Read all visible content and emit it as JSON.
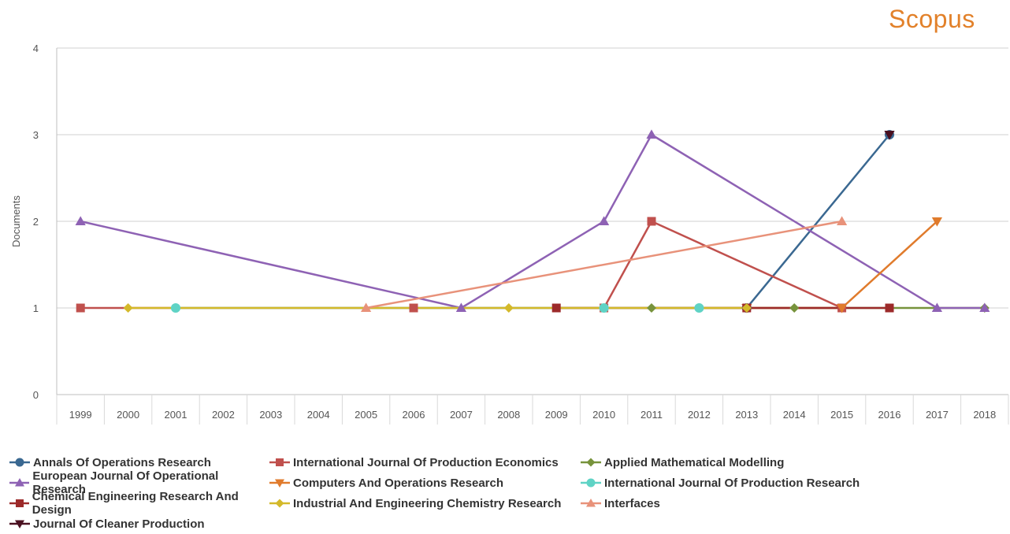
{
  "brand": "Scopus",
  "chart_data": {
    "type": "line",
    "title": "",
    "xlabel": "",
    "ylabel": "Documents",
    "ylim": [
      0,
      4
    ],
    "yticks": [
      "0",
      "1",
      "2",
      "3",
      "4"
    ],
    "categories": [
      "1999",
      "2000",
      "2001",
      "2002",
      "2003",
      "2004",
      "2005",
      "2006",
      "2007",
      "2008",
      "2009",
      "2010",
      "2011",
      "2012",
      "2013",
      "2014",
      "2015",
      "2016",
      "2017",
      "2018"
    ],
    "grid": "horizontal",
    "legend_position": "bottom",
    "series": [
      {
        "name": "Annals Of Operations Research",
        "color": "#3a6891",
        "marker": "circle",
        "points": [
          [
            "2013",
            1
          ],
          [
            "2016",
            3
          ]
        ]
      },
      {
        "name": "International Journal Of Production Economics",
        "color": "#c0504d",
        "marker": "square",
        "points": [
          [
            "1999",
            1
          ],
          [
            "2006",
            1
          ],
          [
            "2010",
            1
          ],
          [
            "2011",
            2
          ],
          [
            "2015",
            1
          ]
        ]
      },
      {
        "name": "Applied Mathematical Modelling",
        "color": "#77933c",
        "marker": "diamond",
        "points": [
          [
            "2011",
            1
          ],
          [
            "2014",
            1
          ],
          [
            "2018",
            1
          ]
        ]
      },
      {
        "name": "European Journal Of Operational Research",
        "color": "#8e62b4",
        "marker": "triangle",
        "points": [
          [
            "1999",
            2
          ],
          [
            "2007",
            1
          ],
          [
            "2010",
            2
          ],
          [
            "2011",
            3
          ],
          [
            "2017",
            1
          ],
          [
            "2018",
            1
          ]
        ]
      },
      {
        "name": "Computers And Operations Research",
        "color": "#e07b2c",
        "marker": "triangle-down",
        "points": [
          [
            "2013",
            1
          ],
          [
            "2015",
            1
          ],
          [
            "2017",
            2
          ]
        ]
      },
      {
        "name": "International Journal Of Production Research",
        "color": "#5fd3c5",
        "marker": "circle",
        "points": [
          [
            "2001",
            1
          ],
          [
            "2010",
            1
          ],
          [
            "2012",
            1
          ]
        ]
      },
      {
        "name": "Chemical Engineering Research And Design",
        "color": "#9c2a2a",
        "marker": "square",
        "points": [
          [
            "2009",
            1
          ],
          [
            "2013",
            1
          ],
          [
            "2016",
            1
          ]
        ]
      },
      {
        "name": "Industrial And Engineering Chemistry Research",
        "color": "#d4b92a",
        "marker": "diamond",
        "points": [
          [
            "2000",
            1
          ],
          [
            "2008",
            1
          ],
          [
            "2013",
            1
          ]
        ]
      },
      {
        "name": "Interfaces",
        "color": "#e8927a",
        "marker": "triangle",
        "points": [
          [
            "2005",
            1
          ],
          [
            "2015",
            2
          ]
        ]
      },
      {
        "name": "Journal Of Cleaner Production",
        "color": "#4a1020",
        "marker": "triangle-down",
        "points": [
          [
            "2016",
            3
          ]
        ]
      }
    ]
  },
  "legend_layout": [
    [
      0,
      1,
      2
    ],
    [
      3,
      4,
      5
    ],
    [
      6,
      7,
      8
    ],
    [
      9
    ]
  ]
}
